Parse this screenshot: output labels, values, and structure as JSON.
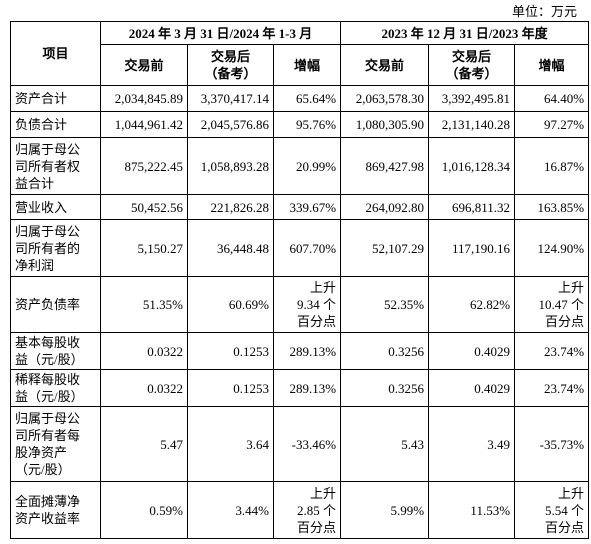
{
  "unit": "单位：万元",
  "table": {
    "corner": "项目",
    "groups": [
      "2024 年 3 月 31 日/2024 年 1-3 月",
      "2023 年 12 月 31 日/2023 年度"
    ],
    "subheaders": [
      "交易前",
      "交易后\n（备考）",
      "增幅",
      "交易前",
      "交易后\n（备考）",
      "增幅"
    ],
    "rows": [
      [
        "资产合计",
        "2,034,845.89",
        "3,370,417.14",
        "65.64%",
        "2,063,578.30",
        "3,392,495.81",
        "64.40%"
      ],
      [
        "负债合计",
        "1,044,961.42",
        "2,045,576.86",
        "95.76%",
        "1,080,305.90",
        "2,131,140.28",
        "97.27%"
      ],
      [
        "归属于母公\n司所有者权\n益合计",
        "875,222.45",
        "1,058,893.28",
        "20.99%",
        "869,427.98",
        "1,016,128.34",
        "16.87%"
      ],
      [
        "营业收入",
        "50,452.56",
        "221,826.28",
        "339.67%",
        "264,092.80",
        "696,811.32",
        "163.85%"
      ],
      [
        "归属于母公\n司所有者的\n净利润",
        "5,150.27",
        "36,448.48",
        "607.70%",
        "52,107.29",
        "117,190.16",
        "124.90%"
      ],
      [
        "资产负债率",
        "51.35%",
        "60.69%",
        "上升\n9.34 个\n百分点",
        "52.35%",
        "62.82%",
        "上升\n10.47 个\n百分点"
      ],
      [
        "基本每股收\n益（元/股）",
        "0.0322",
        "0.1253",
        "289.13%",
        "0.3256",
        "0.4029",
        "23.74%"
      ],
      [
        "稀释每股收\n益（元/股）",
        "0.0322",
        "0.1253",
        "289.13%",
        "0.3256",
        "0.4029",
        "23.74%"
      ],
      [
        "归属于母公\n司所有者每\n股净资产\n（元/股）",
        "5.47",
        "3.64",
        "-33.46%",
        "5.43",
        "3.49",
        "-35.73%"
      ],
      [
        "全面摊薄净\n资产收益率",
        "0.59%",
        "3.44%",
        "上升\n2.85 个\n百分点",
        "5.99%",
        "11.53%",
        "上升\n5.54 个\n百分点"
      ]
    ]
  }
}
